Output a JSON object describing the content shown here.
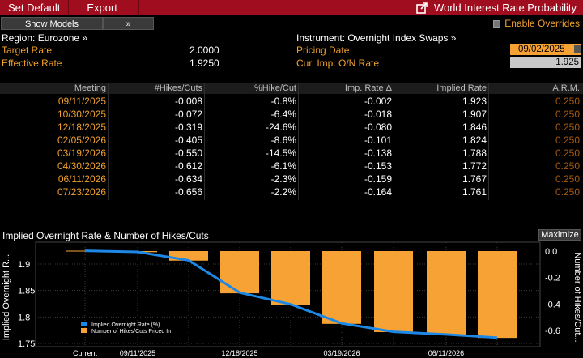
{
  "menu": {
    "set_default": "Set Default",
    "export": "Export",
    "title": "World Interest Rate Probability"
  },
  "toolbar": {
    "show_models": "Show Models",
    "arrows": "»",
    "enable_overrides": "Enable Overrides"
  },
  "info": {
    "region": "Region: Eurozone »",
    "instrument": "Instrument: Overnight Index Swaps »",
    "target_label": "Target Rate",
    "target_value": "2.0000",
    "effective_label": "Effective Rate",
    "effective_value": "1.9250",
    "pricing_label": "Pricing Date",
    "pricing_value": "09/02/2025",
    "curimp_label": "Cur. Imp. O/N Rate",
    "curimp_value": "1.925"
  },
  "table": {
    "headers": [
      "Meeting",
      "#Hikes/Cuts",
      "%Hike/Cut",
      "Imp. Rate Δ",
      "Implied Rate",
      "A.R.M."
    ],
    "rows": [
      [
        "09/11/2025",
        "-0.008",
        "-0.8%",
        "-0.002",
        "1.923",
        "0.250"
      ],
      [
        "10/30/2025",
        "-0.072",
        "-6.4%",
        "-0.018",
        "1.907",
        "0.250"
      ],
      [
        "12/18/2025",
        "-0.319",
        "-24.6%",
        "-0.080",
        "1.846",
        "0.250"
      ],
      [
        "02/05/2026",
        "-0.405",
        "-8.6%",
        "-0.101",
        "1.824",
        "0.250"
      ],
      [
        "03/19/2026",
        "-0.550",
        "-14.5%",
        "-0.138",
        "1.788",
        "0.250"
      ],
      [
        "04/30/2026",
        "-0.612",
        "-6.1%",
        "-0.153",
        "1.772",
        "0.250"
      ],
      [
        "06/11/2026",
        "-0.634",
        "-2.3%",
        "-0.159",
        "1.767",
        "0.250"
      ],
      [
        "07/23/2026",
        "-0.656",
        "-2.2%",
        "-0.164",
        "1.761",
        "0.250"
      ]
    ]
  },
  "chart_title": "Implied Overnight Rate & Number of Hikes/Cuts",
  "maximize_label": "Maximize",
  "colors": {
    "accent_orange": "#f7a234",
    "header_red": "#a00d1e",
    "line_blue": "#1e88e5"
  },
  "chart_data": {
    "type": "bar+line",
    "categories": [
      "Current",
      "09/11/2025",
      "10/30/2025",
      "12/18/2025",
      "02/05/2026",
      "03/19/2026",
      "04/30/2026",
      "06/11/2026",
      "07/23/2026"
    ],
    "x_tick_labels": [
      "Current",
      "09/11/2025",
      "12/18/2025",
      "03/19/2026",
      "06/11/2026"
    ],
    "series": [
      {
        "name": "Implied Overnight Rate (%)",
        "type": "line",
        "axis": "left",
        "values": [
          1.925,
          1.923,
          1.907,
          1.846,
          1.824,
          1.788,
          1.772,
          1.767,
          1.761
        ]
      },
      {
        "name": "Number of Hikes/Cuts Priced In",
        "type": "bar",
        "axis": "right",
        "values": [
          0,
          -0.008,
          -0.072,
          -0.319,
          -0.405,
          -0.55,
          -0.612,
          -0.634,
          -0.656
        ]
      }
    ],
    "ylabel_left": "Implied Overnight R...",
    "ylabel_right": "Number of Hikes/Cut...",
    "ylim_left": [
      1.75,
      1.925
    ],
    "yticks_left": [
      "1.9",
      "1.85",
      "1.8",
      "1.75"
    ],
    "ylim_right": [
      -0.7,
      0.05
    ],
    "yticks_right": [
      "0.0",
      "-0.2",
      "-0.4",
      "-0.6"
    ],
    "grid": true,
    "legend_position": "bottom-left"
  }
}
